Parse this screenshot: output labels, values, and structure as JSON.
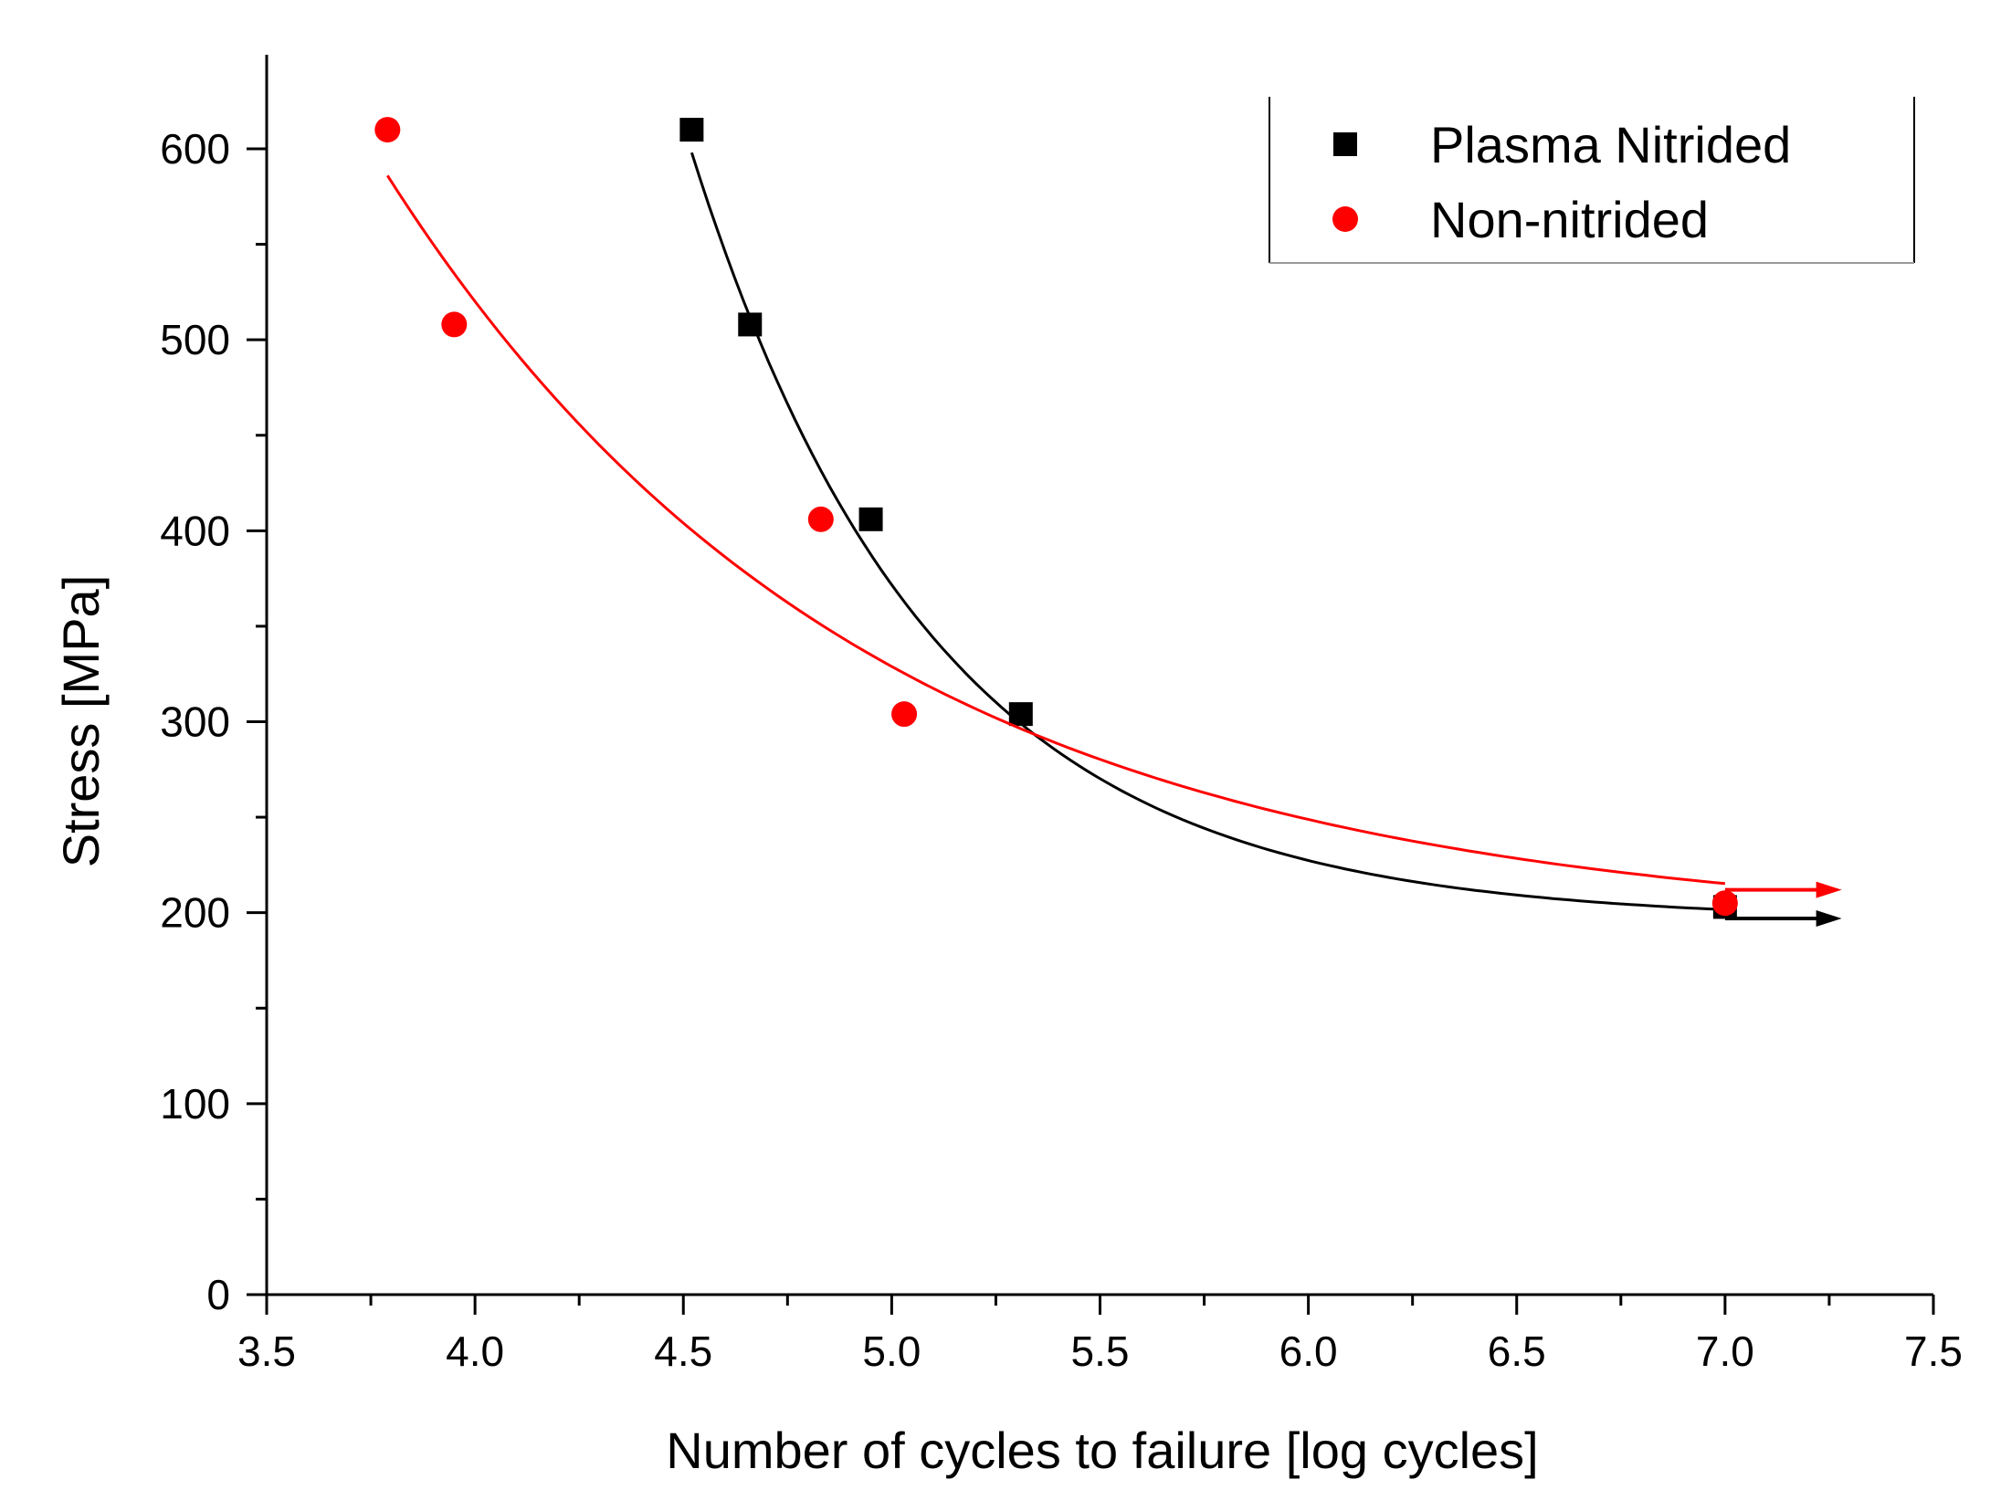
{
  "chart_data": {
    "type": "scatter",
    "title": "",
    "xlabel": "Number of cycles to failure [log cycles]",
    "ylabel": "Stress [MPa]",
    "xlim": [
      3.5,
      7.5
    ],
    "ylim": [
      0,
      650
    ],
    "xticks": [
      3.5,
      4.0,
      4.5,
      5.0,
      5.5,
      6.0,
      6.5,
      7.0,
      7.5
    ],
    "xtick_labels": [
      "3.5",
      "4.0",
      "4.5",
      "5.0",
      "5.5",
      "6.0",
      "6.5",
      "7.0",
      "7.5"
    ],
    "yticks": [
      0,
      100,
      200,
      300,
      400,
      500,
      600
    ],
    "ytick_labels": [
      "0",
      "100",
      "200",
      "300",
      "400",
      "500",
      "600"
    ],
    "grid": false,
    "legend_position": "top-right",
    "series": [
      {
        "name": "Plasma Nitrided",
        "marker": "square",
        "color": "#000000",
        "x": [
          4.52,
          4.66,
          4.95,
          5.31,
          7.0
        ],
        "y": [
          610,
          508,
          406,
          304,
          203
        ],
        "fit": {
          "form": "exponential_decay",
          "y0": 196,
          "A": 402,
          "x0": 4.52,
          "t": 0.58,
          "x_range": [
            4.52,
            7.0
          ]
        },
        "runout_arrow": {
          "x_start": 7.0,
          "x_end": 7.28,
          "y": 197
        }
      },
      {
        "name": "Non-nitrided",
        "marker": "circle",
        "color": "#ff0000",
        "x": [
          3.79,
          3.95,
          4.83,
          5.03,
          7.0
        ],
        "y": [
          610,
          508,
          406,
          304,
          205
        ],
        "fit": {
          "form": "exponential_decay",
          "y0": 191,
          "A": 395,
          "x0": 3.79,
          "t": 1.15,
          "x_range": [
            3.79,
            7.0
          ]
        },
        "runout_arrow": {
          "x_start": 7.0,
          "x_end": 7.28,
          "y": 212
        }
      }
    ]
  }
}
